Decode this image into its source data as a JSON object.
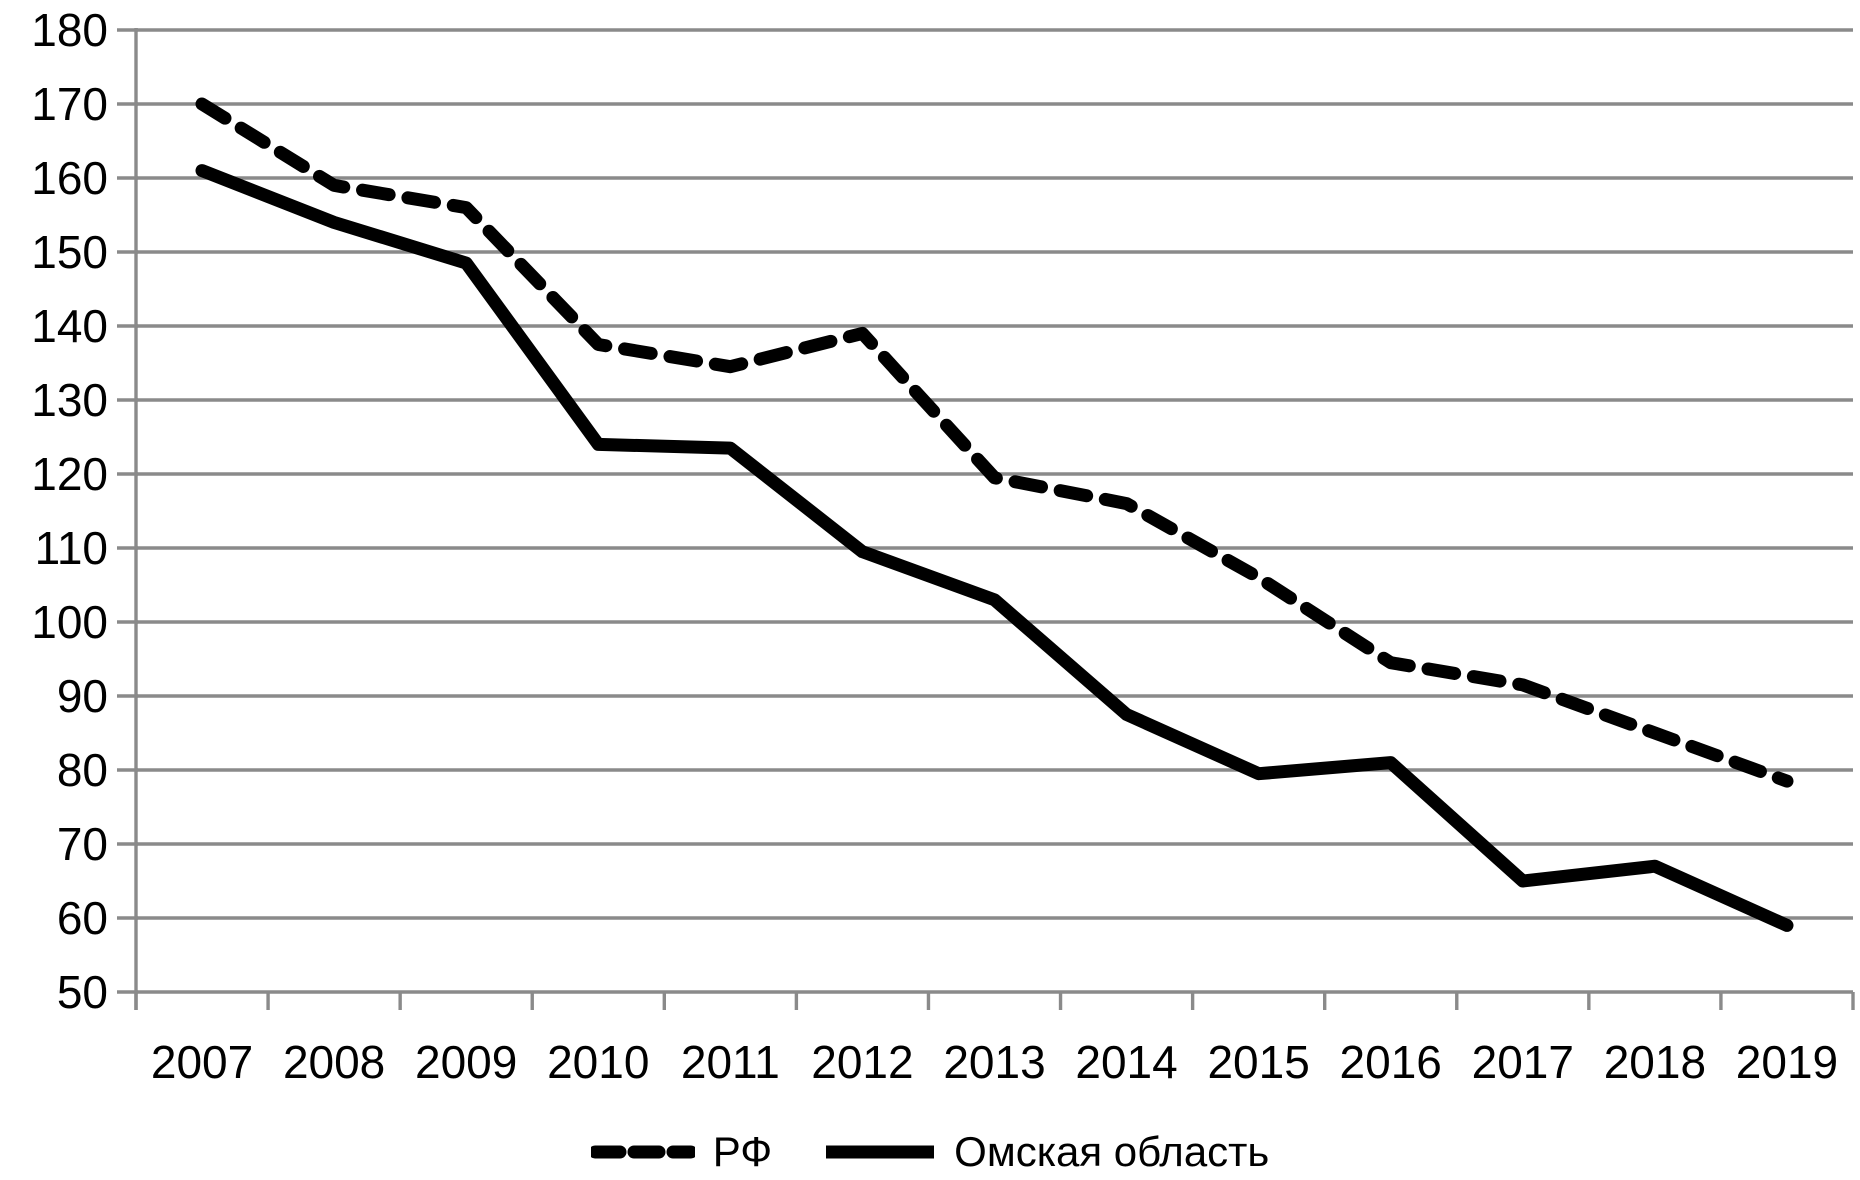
{
  "chart_data": {
    "type": "line",
    "title": "",
    "categories": [
      "2007",
      "2008",
      "2009",
      "2010",
      "2011",
      "2012",
      "2013",
      "2014",
      "2015",
      "2016",
      "2017",
      "2018",
      "2019"
    ],
    "series": [
      {
        "name": "РФ",
        "line_style": "dashed",
        "values": [
          170,
          159,
          156,
          137.5,
          134.5,
          139,
          119.5,
          116,
          106,
          94.5,
          91.5,
          85,
          78.5
        ]
      },
      {
        "name": "Омская область",
        "line_style": "solid",
        "values": [
          161,
          154,
          148.5,
          124,
          123.5,
          109.5,
          103,
          87.5,
          79.5,
          81,
          65,
          67,
          59
        ]
      }
    ],
    "y_axis": {
      "min": 50,
      "max": 180,
      "step": 10,
      "tick_labels": [
        "180",
        "170",
        "160",
        "150",
        "140",
        "130",
        "120",
        "110",
        "100",
        "90",
        "80",
        "70",
        "60",
        "50"
      ]
    },
    "x_axis": {
      "tick_labels": [
        "2007",
        "2008",
        "2009",
        "2010",
        "2011",
        "2012",
        "2013",
        "2014",
        "2015",
        "2016",
        "2017",
        "2018",
        "2019"
      ]
    },
    "legend": {
      "position": "bottom",
      "entries": [
        "РФ",
        "Омская область"
      ]
    },
    "grid": true,
    "colors": {
      "line": "#000000",
      "grid": "#8a8a8a",
      "text": "#000000",
      "background": "#ffffff"
    }
  }
}
